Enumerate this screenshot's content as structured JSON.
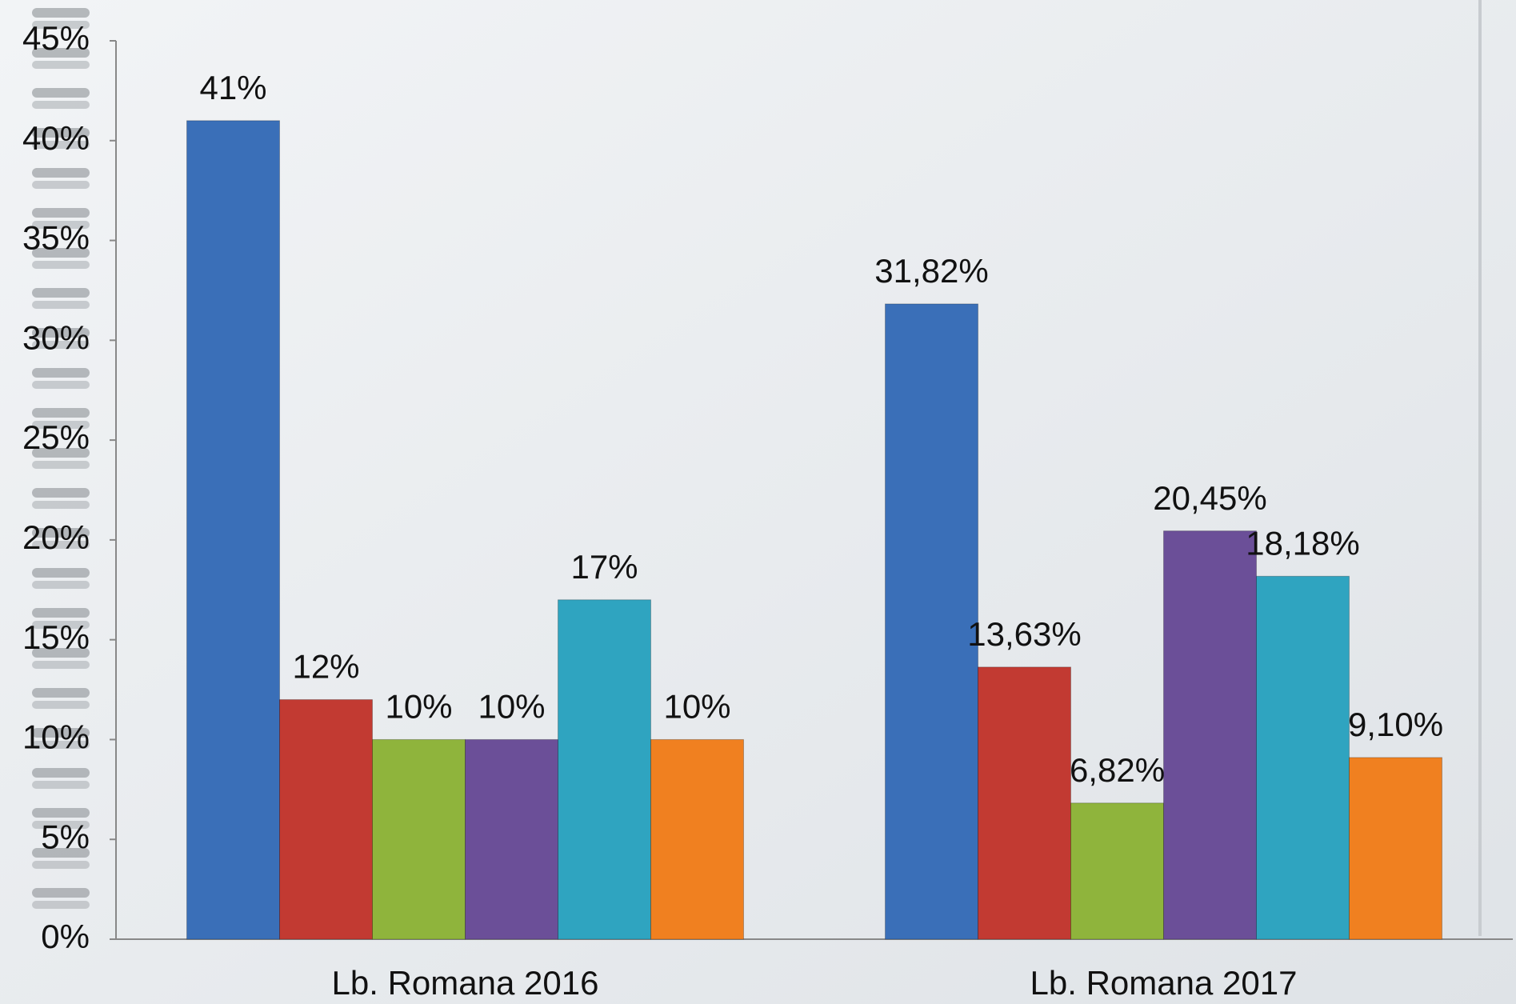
{
  "chart_data": {
    "type": "bar",
    "categories": [
      "Lb. Romana 2016",
      "Lb. Romana 2017"
    ],
    "series": [
      {
        "color": "#3a6fb8",
        "values": [
          41,
          31.82
        ],
        "value_labels": [
          "41%",
          "31,82%"
        ]
      },
      {
        "color": "#c23a32",
        "values": [
          12,
          13.63
        ],
        "value_labels": [
          "12%",
          "13,63%"
        ]
      },
      {
        "color": "#8fb43c",
        "values": [
          10,
          6.82
        ],
        "value_labels": [
          "10%",
          "6,82%"
        ]
      },
      {
        "color": "#6b4f98",
        "values": [
          10,
          20.45
        ],
        "value_labels": [
          "10%",
          "20,45%"
        ]
      },
      {
        "color": "#2fa4c0",
        "values": [
          17,
          18.18
        ],
        "value_labels": [
          "17%",
          "18,18%"
        ]
      },
      {
        "color": "#f08020",
        "values": [
          10,
          9.1
        ],
        "value_labels": [
          "10%",
          "9,10%"
        ]
      }
    ],
    "ylim": [
      0,
      45
    ],
    "yticks": [
      {
        "value": 0,
        "label": "0%"
      },
      {
        "value": 5,
        "label": "5%"
      },
      {
        "value": 10,
        "label": "10%"
      },
      {
        "value": 15,
        "label": "15%"
      },
      {
        "value": 20,
        "label": "20%"
      },
      {
        "value": 25,
        "label": "25%"
      },
      {
        "value": 30,
        "label": "30%"
      },
      {
        "value": 35,
        "label": "35%"
      },
      {
        "value": 40,
        "label": "40%"
      },
      {
        "value": 45,
        "label": "45%"
      }
    ],
    "grid": false
  }
}
